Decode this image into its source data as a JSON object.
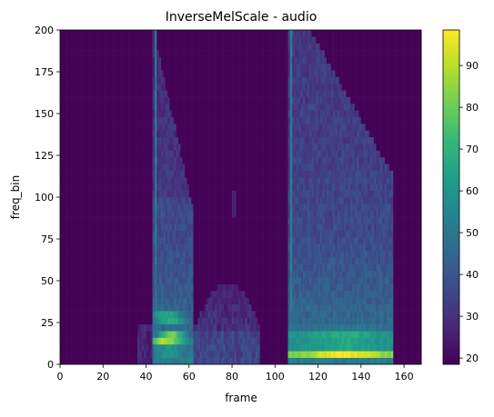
{
  "chart_data": {
    "type": "heatmap",
    "title": "InverseMelScale - audio",
    "xlabel": "frame",
    "ylabel": "freq_bin",
    "xlim": [
      0,
      168
    ],
    "ylim": [
      0,
      200
    ],
    "x_ticks": [
      0,
      20,
      40,
      60,
      80,
      100,
      120,
      140,
      160
    ],
    "y_ticks": [
      0,
      25,
      50,
      75,
      100,
      125,
      150,
      175,
      200
    ],
    "colorbar": {
      "colormap": "viridis",
      "range": [
        18.5,
        98.5
      ],
      "ticks": [
        20,
        30,
        40,
        50,
        60,
        70,
        80,
        90
      ]
    },
    "background_value": 19,
    "segments": [
      {
        "start_frame": 43,
        "end_frame": 62,
        "onset_stripe_frame": 44,
        "low_band_peak_value": 97,
        "upper_extent_freq_bin": 200
      },
      {
        "start_frame": 62,
        "end_frame": 93,
        "low_band_peak_value": 42,
        "upper_extent_freq_bin": 50
      },
      {
        "start_frame": 106,
        "end_frame": 155,
        "onset_stripe_frame": 107,
        "low_band_peak_value": 95,
        "upper_extent_freq_bin": 200
      }
    ],
    "faint_low_frames": [
      36,
      43
    ],
    "faint_low_freq_bin_max": 25
  },
  "colors": {
    "viridis_stops": [
      "#440154",
      "#482878",
      "#3e4989",
      "#31688e",
      "#26828e",
      "#1f9e89",
      "#35b779",
      "#6ece58",
      "#b5de2b",
      "#fde725"
    ]
  }
}
